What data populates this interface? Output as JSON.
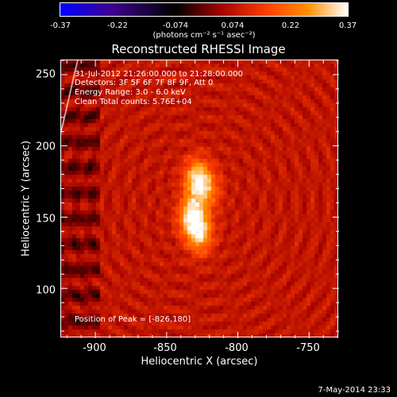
{
  "colorbar": {
    "ticks": [
      "-0.37",
      "-0.22",
      "-0.074",
      "0.074",
      "0.22",
      "0.37"
    ],
    "units": "(photons cm⁻² s⁻¹ asec⁻²)",
    "colors": [
      "#0000ff",
      "#400090",
      "#000000",
      "#a00000",
      "#ff4000",
      "#ff9000",
      "#ffffff"
    ]
  },
  "chart_data": {
    "type": "heatmap",
    "title": "Reconstructed RHESSI Image",
    "xlabel": "Heliocentric X (arcsec)",
    "ylabel": "Heliocentric Y (arcsec)",
    "xlim": [
      -924,
      -729
    ],
    "ylim": [
      65,
      260
    ],
    "xticks": [
      "-900",
      "-850",
      "-800",
      "-750"
    ],
    "yticks": [
      "100",
      "150",
      "200",
      "250"
    ],
    "peak": [
      -826,
      180
    ],
    "sources": [
      {
        "x": -828,
        "y": 176,
        "amplitude": 0.26
      },
      {
        "x": -832,
        "y": 150,
        "amplitude": 0.25
      },
      {
        "x": -826,
        "y": 138,
        "amplitude": 0.22
      },
      {
        "x": -820,
        "y": 168,
        "amplitude": 0.12
      }
    ],
    "background_level": 0.08,
    "vmin": -0.37,
    "vmax": 0.37,
    "annotations": [
      "31-Jul-2012 21:26:00.000 to 21:28:00.000",
      "Detectors: 3F 5F 6F 7F 8F 9F, Att 0",
      "Energy Range: 3.0 - 6.0 keV",
      "Clean     Total counts: 5.76E+04"
    ],
    "peak_label": "Position of Peak = [-826,180]"
  },
  "datestamp": "7-May-2014 23:33"
}
